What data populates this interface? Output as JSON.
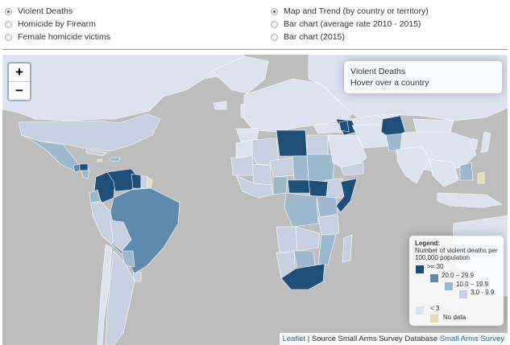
{
  "controls": {
    "indicator_options": [
      {
        "label": "Violent Deaths",
        "checked": true
      },
      {
        "label": "Homicide by Firearm",
        "checked": false
      },
      {
        "label": "Female homicide victims",
        "checked": false
      }
    ],
    "view_options": [
      {
        "label": "Map and Trend (by country or territory)",
        "checked": true
      },
      {
        "label": "Bar chart (average rate 2010 - 2015)",
        "checked": false
      },
      {
        "label": "Bar chart (2015)",
        "checked": false
      }
    ]
  },
  "map": {
    "zoom_in_label": "+",
    "zoom_out_label": "−",
    "info": {
      "title": "Violent Deaths",
      "hint": "Hover over a country"
    },
    "legend": {
      "title": "Legend:",
      "subtitle": "Number of violent deaths per 100,000 population",
      "items": [
        {
          "label": ">= 30",
          "color": "#1f4e79"
        },
        {
          "label": "20.0 – 29.9",
          "color": "#5f8aad"
        },
        {
          "label": "10.0 – 19.9",
          "color": "#9bb8cc"
        },
        {
          "label": "3.0 - 9.9",
          "color": "#c7d0e0"
        },
        {
          "label": "< 3",
          "color": "#dde2f0"
        },
        {
          "label": "No data",
          "color": "#e2dcb4"
        }
      ]
    },
    "attribution": {
      "leaflet": "Leaflet",
      "separator": "|",
      "source_text": "Source Small Arms Survey Database",
      "source_link": "Small Arms Survey"
    },
    "colors": {
      "background": "#bdbdbd",
      "border": "#ffffff"
    }
  }
}
